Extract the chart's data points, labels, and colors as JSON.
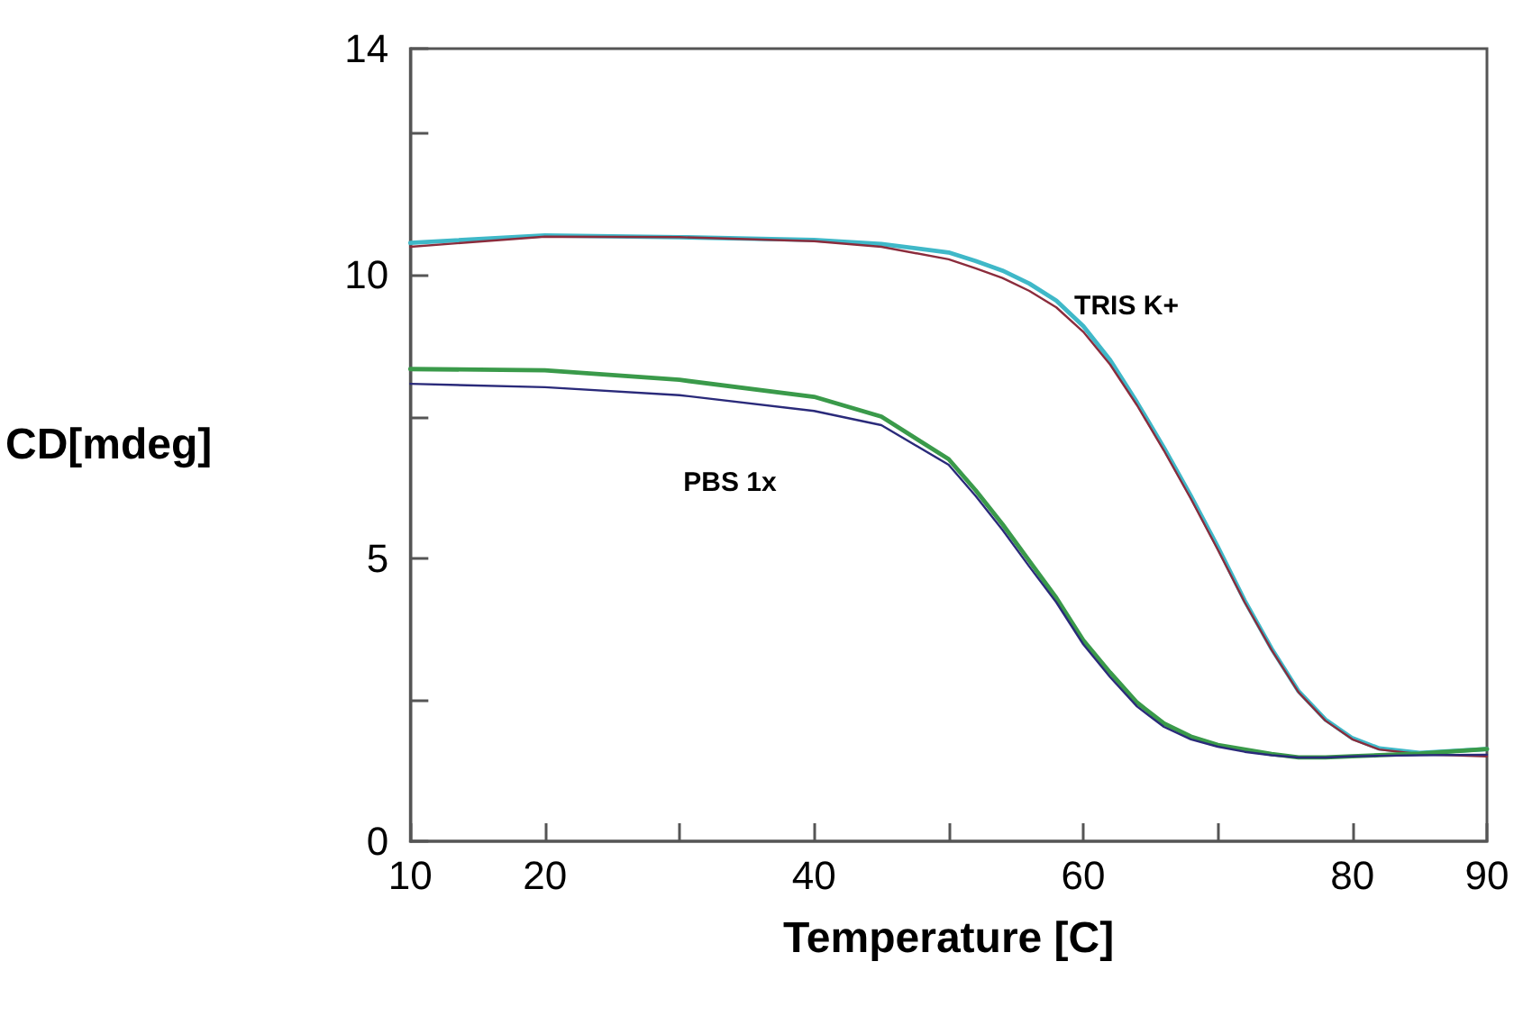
{
  "chart_data": {
    "type": "line",
    "xlabel": "Temperature [C]",
    "ylabel": "CD[mdeg]",
    "x": [
      10,
      20,
      30,
      40,
      45,
      50,
      52,
      54,
      56,
      58,
      60,
      62,
      64,
      66,
      68,
      70,
      72,
      74,
      76,
      78,
      80,
      82,
      85,
      90
    ],
    "series": [
      {
        "color": "#3fb8c8",
        "values": [
          10.57,
          10.7,
          10.67,
          10.62,
          10.55,
          10.4,
          10.25,
          10.08,
          9.85,
          9.55,
          9.1,
          8.5,
          7.75,
          6.95,
          6.1,
          5.2,
          4.25,
          3.4,
          2.65,
          2.15,
          1.82,
          1.64,
          1.56,
          1.63
        ]
      },
      {
        "color": "#8b2c3c",
        "values": [
          10.5,
          10.68,
          10.67,
          10.6,
          10.5,
          10.28,
          10.12,
          9.95,
          9.72,
          9.43,
          9.0,
          8.42,
          7.7,
          6.9,
          6.05,
          5.15,
          4.22,
          3.38,
          2.63,
          2.13,
          1.8,
          1.62,
          1.54,
          1.5
        ]
      },
      {
        "color": "#3a9a4a",
        "values": [
          8.34,
          8.32,
          8.15,
          7.85,
          7.5,
          6.75,
          6.2,
          5.6,
          4.95,
          4.3,
          3.55,
          2.98,
          2.45,
          2.08,
          1.85,
          1.7,
          1.62,
          1.54,
          1.48,
          1.48,
          1.5,
          1.52,
          1.55,
          1.63
        ]
      },
      {
        "color": "#2a2a7a",
        "values": [
          8.08,
          8.02,
          7.88,
          7.6,
          7.35,
          6.65,
          6.1,
          5.5,
          4.85,
          4.22,
          3.48,
          2.9,
          2.38,
          2.02,
          1.8,
          1.67,
          1.58,
          1.52,
          1.48,
          1.48,
          1.5,
          1.51,
          1.52,
          1.53
        ]
      }
    ],
    "annotations": [
      "TRIS K+",
      "PBS 1x"
    ],
    "xlim": [
      10,
      90
    ],
    "xticks": [
      10,
      20,
      {
        "value": 30,
        "label": null
      },
      40,
      {
        "value": 50,
        "label": null
      },
      60,
      {
        "value": 70,
        "label": null
      },
      80,
      90
    ],
    "ylim": [
      0,
      14
    ],
    "yticks": [
      0,
      {
        "value": 2.5,
        "label": null
      },
      5,
      {
        "value": 7.5,
        "label": null
      },
      10,
      {
        "value": 12.5,
        "label": null
      },
      14
    ],
    "grid": false,
    "marker": "none",
    "line_style": "solid"
  }
}
